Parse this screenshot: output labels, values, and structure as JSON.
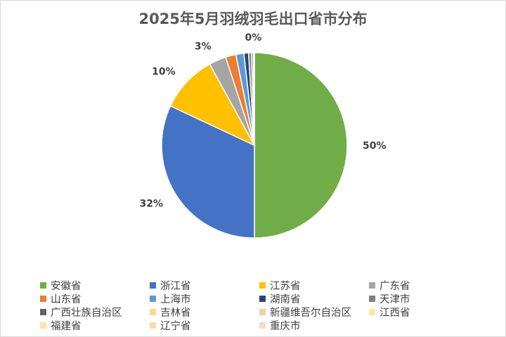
{
  "chart_data": {
    "type": "pie",
    "title": "2025年5月羽绒羽毛出口省市分布",
    "slices": [
      {
        "label": "安徽省",
        "value": 50,
        "data_label": "50%",
        "color": "#70ad47"
      },
      {
        "label": "浙江省",
        "value": 32,
        "data_label": "32%",
        "color": "#4472c4"
      },
      {
        "label": "江苏省",
        "value": 10,
        "data_label": "10%",
        "color": "#ffc000"
      },
      {
        "label": "广东省",
        "value": 3,
        "data_label": "3%",
        "color": "#a5a5a5"
      },
      {
        "label": "山东省",
        "value": 1.8,
        "data_label": "",
        "color": "#ed7d31"
      },
      {
        "label": "上海市",
        "value": 1.4,
        "data_label": "",
        "color": "#5b9bd5"
      },
      {
        "label": "湖南省",
        "value": 0.8,
        "data_label": "",
        "color": "#264478"
      },
      {
        "label": "天津市",
        "value": 0.5,
        "data_label": "",
        "color": "#7f7f7f"
      },
      {
        "label": "广西壮族自治区",
        "value": 0.3,
        "data_label": "",
        "color": "#636363"
      },
      {
        "label": "吉林省",
        "value": 0.1,
        "data_label": "0%",
        "color": "#ffd98a"
      },
      {
        "label": "新疆维吾尔自治区",
        "value": 0.05,
        "data_label": "",
        "color": "#f8cba0"
      },
      {
        "label": "江西省",
        "value": 0.03,
        "data_label": "",
        "color": "#ffe699"
      },
      {
        "label": "福建省",
        "value": 0.02,
        "data_label": "",
        "color": "#ffe2a8"
      },
      {
        "label": "辽宁省",
        "value": 0.01,
        "data_label": "",
        "color": "#fbd9a8"
      },
      {
        "label": "重庆市",
        "value": 0.005,
        "data_label": "",
        "color": "#f6dcc0"
      }
    ],
    "legend_position": "bottom"
  }
}
